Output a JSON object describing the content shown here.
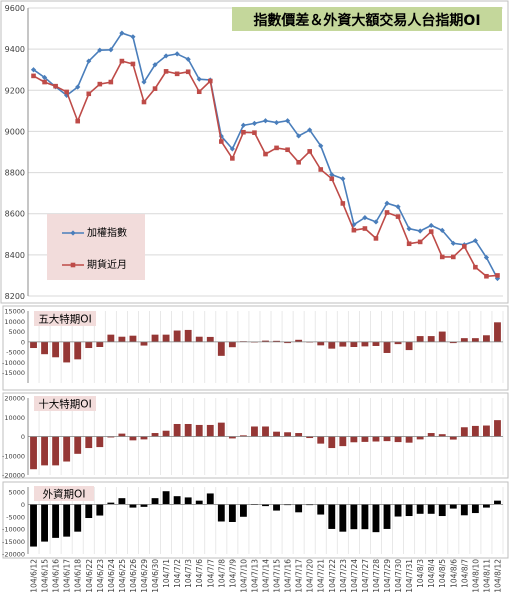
{
  "chart_data": [
    {
      "type": "line",
      "title": "指數價差＆外資大額交易人台指期OI",
      "ylim": [
        8200,
        9600
      ],
      "yticks": [
        8200,
        8400,
        8600,
        8800,
        9000,
        9200,
        9400,
        9600
      ],
      "series": [
        {
          "name": "加權指數",
          "color": "#4a7ebb",
          "values": [
            9300,
            9262,
            9217,
            9175,
            9216,
            9342,
            9395,
            9397,
            9478,
            9460,
            9240,
            9324,
            9367,
            9377,
            9351,
            9254,
            9250,
            8977,
            8915,
            9030,
            9039,
            9052,
            9043,
            9052,
            8978,
            9007,
            8930,
            8790,
            8770,
            8547,
            8581,
            8560,
            8651,
            8634,
            8527,
            8516,
            8543,
            8519,
            8456,
            8449,
            8469,
            8387,
            8285
          ]
        },
        {
          "name": "期貨近月",
          "color": "#be4b48",
          "values": [
            9270,
            9240,
            9220,
            9192,
            9050,
            9183,
            9230,
            9240,
            9342,
            9328,
            9143,
            9208,
            9292,
            9280,
            9290,
            9193,
            9245,
            8951,
            8869,
            8996,
            8994,
            8890,
            8920,
            8911,
            8850,
            8903,
            8815,
            8770,
            8650,
            8520,
            8528,
            8480,
            8606,
            8586,
            8454,
            8463,
            8513,
            8390,
            8390,
            8441,
            8340,
            8296,
            8300
          ]
        }
      ]
    },
    {
      "type": "bar",
      "title": "五大特期OI",
      "ylim": [
        -20000,
        15000
      ],
      "yticks": [
        -15000,
        -10000,
        -5000,
        0,
        5000,
        10000,
        15000
      ],
      "values": [
        -3000,
        -6000,
        -7500,
        -10000,
        -8500,
        -3000,
        -2500,
        3500,
        2500,
        3000,
        -1800,
        3500,
        3500,
        5500,
        5800,
        2500,
        2400,
        -6800,
        -2600,
        300,
        -300,
        600,
        500,
        -600,
        1000,
        -300,
        -1700,
        -3300,
        -2300,
        -2500,
        -2200,
        -2000,
        -5400,
        -1100,
        -4000,
        2800,
        2800,
        5000,
        -600,
        1800,
        1800,
        3200,
        9500
      ],
      "color": "#953735"
    },
    {
      "type": "bar",
      "title": "十大特期OI",
      "ylim": [
        -20000,
        20000
      ],
      "yticks": [
        -20000,
        -10000,
        0,
        10000,
        20000
      ],
      "values": [
        -17000,
        -15000,
        -15000,
        -13000,
        -9000,
        -6000,
        -5500,
        -500,
        1500,
        -2000,
        -1500,
        1800,
        3000,
        6500,
        6500,
        6000,
        6000,
        7200,
        -1000,
        600,
        5200,
        5200,
        2500,
        2200,
        1800,
        -800,
        -3700,
        -6000,
        -5000,
        -3000,
        -2800,
        -2600,
        -2400,
        -2900,
        -3200,
        -1500,
        1800,
        1200,
        -1600,
        4800,
        5500,
        5700,
        8500
      ],
      "color": "#953735"
    },
    {
      "type": "bar",
      "title": "外資期OI",
      "ylim": [
        -20000,
        7000
      ],
      "yticks": [
        -20000,
        -15000,
        -10000,
        -5000,
        0,
        5000
      ],
      "values": [
        -17000,
        -15000,
        -13500,
        -13000,
        -11000,
        -5500,
        -4500,
        700,
        2500,
        -1300,
        -1000,
        2500,
        5300,
        3300,
        2800,
        1500,
        4400,
        -6900,
        -7100,
        -5000,
        -100,
        -700,
        -2500,
        -300,
        -3200,
        -300,
        -4100,
        -9900,
        -11000,
        -10000,
        -10000,
        -11200,
        -9900,
        -4900,
        -4700,
        -3800,
        -3800,
        -4700,
        -1700,
        -4400,
        -3500,
        -1300,
        1500
      ],
      "color": "#000000"
    }
  ],
  "dates": [
    "104/6/12",
    "104/6/15",
    "104/6/16",
    "104/6/17",
    "104/6/18",
    "104/6/22",
    "104/6/23",
    "104/6/24",
    "104/6/25",
    "104/6/26",
    "104/6/29",
    "104/6/30",
    "104/7/1",
    "104/7/2",
    "104/7/3",
    "104/7/6",
    "104/7/7",
    "104/7/8",
    "104/7/9",
    "104/7/10",
    "104/7/13",
    "104/7/14",
    "104/7/15",
    "104/7/16",
    "104/7/17",
    "104/7/20",
    "104/7/21",
    "104/7/22",
    "104/7/23",
    "104/7/24",
    "104/7/27",
    "104/7/28",
    "104/7/29",
    "104/7/30",
    "104/7/31",
    "104/8/3",
    "104/8/4",
    "104/8/5",
    "104/8/6",
    "104/8/7",
    "104/8/10",
    "104/8/11",
    "104/8/12"
  ],
  "colors": {
    "title_bg": "#c4d79b",
    "legend_bg": "#f2dcdb",
    "panel_bg": "#ffffff",
    "grid": "#d9d9d9"
  }
}
